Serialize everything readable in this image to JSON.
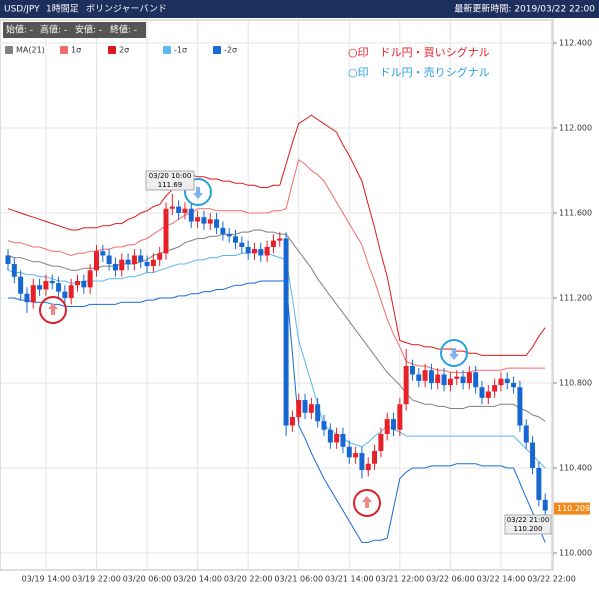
{
  "header": {
    "pair": "USD/JPY",
    "timeframe": "1時間足",
    "indicator": "ボリンジャーバンド",
    "updated": "最新更新時間: 2019/03/22 22:00"
  },
  "info_bar": [
    "始値: -",
    "高値: -",
    "安値: -",
    "終値: -"
  ],
  "annotations": [
    {
      "time": "03/20 10:00",
      "price": "111.69"
    },
    {
      "time": "03/22 21:00",
      "price": "110.200"
    }
  ],
  "chart_data": {
    "type": "candlestick",
    "categories": [
      null,
      null,
      null,
      null,
      null,
      null,
      "03/19 14:00",
      null,
      null,
      null,
      null,
      null,
      null,
      null,
      "03/19 22:00",
      null,
      null,
      null,
      null,
      null,
      null,
      null,
      "03/20 06:00",
      null,
      null,
      null,
      null,
      null,
      null,
      null,
      "03/20 14:00",
      null,
      null,
      null,
      null,
      null,
      null,
      null,
      "03/20 22:00",
      null,
      null,
      null,
      null,
      null,
      null,
      null,
      "03/21 06:00",
      null,
      null,
      null,
      null,
      null,
      null,
      null,
      "03/21 14:00",
      null,
      null,
      null,
      null,
      null,
      null,
      null,
      "03/21 22:00",
      null,
      null,
      null,
      null,
      null,
      null,
      null,
      "03/22 06:00",
      null,
      null,
      null,
      null,
      null,
      null,
      null,
      "03/22 14:00",
      null,
      null,
      null,
      null,
      null,
      null,
      null,
      "03/22 22:00"
    ],
    "open": [
      111.4,
      111.36,
      111.3,
      111.22,
      111.18,
      111.26,
      111.24,
      111.28,
      111.27,
      111.23,
      111.2,
      111.26,
      111.28,
      111.25,
      111.33,
      111.42,
      111.4,
      111.36,
      111.33,
      111.38,
      111.36,
      111.4,
      111.37,
      111.35,
      111.38,
      111.41,
      111.62,
      111.63,
      111.6,
      111.62,
      111.56,
      111.58,
      111.55,
      111.57,
      111.53,
      111.5,
      111.49,
      111.46,
      111.44,
      111.41,
      111.43,
      111.4,
      111.44,
      111.47,
      111.48,
      110.6,
      110.64,
      110.72,
      110.66,
      110.7,
      110.62,
      110.58,
      110.52,
      110.56,
      110.5,
      110.45,
      110.47,
      110.39,
      110.42,
      110.48,
      110.56,
      110.63,
      110.58,
      110.7,
      110.88,
      110.84,
      110.81,
      110.86,
      110.8,
      110.84,
      110.79,
      110.82,
      110.83,
      110.8,
      110.85,
      110.78,
      110.73,
      110.76,
      110.79,
      110.82,
      110.8,
      110.78,
      110.6,
      110.52,
      110.4,
      110.25,
      null
    ],
    "high": [
      111.43,
      111.39,
      111.33,
      111.25,
      111.29,
      111.29,
      111.31,
      111.31,
      111.3,
      111.26,
      111.29,
      111.31,
      111.31,
      111.36,
      111.45,
      111.45,
      111.43,
      111.39,
      111.41,
      111.41,
      111.43,
      111.43,
      111.4,
      111.41,
      111.44,
      111.65,
      111.69,
      111.66,
      111.65,
      111.65,
      111.61,
      111.61,
      111.6,
      111.6,
      111.56,
      111.53,
      111.52,
      111.49,
      111.47,
      111.46,
      111.46,
      111.47,
      111.5,
      111.51,
      111.51,
      110.67,
      110.75,
      110.75,
      110.73,
      110.73,
      110.65,
      110.61,
      110.59,
      110.59,
      110.53,
      110.5,
      110.5,
      110.45,
      110.51,
      110.59,
      110.66,
      110.66,
      110.73,
      110.96,
      110.91,
      110.87,
      110.89,
      110.89,
      110.87,
      110.87,
      110.85,
      110.86,
      110.86,
      110.88,
      110.88,
      110.81,
      110.79,
      110.82,
      110.85,
      110.85,
      110.83,
      110.81,
      110.63,
      110.55,
      110.43,
      110.28,
      null
    ],
    "low": [
      111.33,
      111.27,
      111.19,
      111.13,
      111.15,
      111.21,
      111.21,
      111.24,
      111.2,
      111.17,
      111.17,
      111.23,
      111.22,
      111.22,
      111.3,
      111.37,
      111.33,
      111.3,
      111.3,
      111.33,
      111.33,
      111.34,
      111.32,
      111.32,
      111.35,
      111.38,
      111.59,
      111.57,
      111.57,
      111.53,
      111.53,
      111.52,
      111.52,
      111.5,
      111.47,
      111.46,
      111.43,
      111.41,
      111.38,
      111.38,
      111.37,
      111.37,
      111.41,
      111.44,
      110.55,
      110.57,
      110.61,
      110.63,
      110.63,
      110.59,
      110.55,
      110.49,
      110.49,
      110.47,
      110.42,
      110.42,
      110.35,
      110.36,
      110.39,
      110.45,
      110.53,
      110.55,
      110.55,
      110.67,
      110.81,
      110.78,
      110.78,
      110.77,
      110.77,
      110.76,
      110.76,
      110.79,
      110.77,
      110.77,
      110.75,
      110.7,
      110.7,
      110.73,
      110.76,
      110.77,
      110.75,
      110.57,
      110.49,
      110.37,
      110.22,
      110.18,
      null
    ],
    "close": [
      111.36,
      111.3,
      111.22,
      111.18,
      111.26,
      111.24,
      111.28,
      111.27,
      111.23,
      111.2,
      111.26,
      111.28,
      111.25,
      111.33,
      111.42,
      111.4,
      111.36,
      111.33,
      111.38,
      111.36,
      111.4,
      111.37,
      111.35,
      111.38,
      111.41,
      111.62,
      111.63,
      111.6,
      111.62,
      111.56,
      111.58,
      111.55,
      111.57,
      111.53,
      111.5,
      111.49,
      111.46,
      111.44,
      111.41,
      111.43,
      111.4,
      111.44,
      111.47,
      111.48,
      110.6,
      110.64,
      110.72,
      110.66,
      110.7,
      110.62,
      110.58,
      110.52,
      110.56,
      110.5,
      110.45,
      110.47,
      110.39,
      110.42,
      110.48,
      110.56,
      110.63,
      110.58,
      110.7,
      110.88,
      110.84,
      110.81,
      110.86,
      110.8,
      110.84,
      110.79,
      110.82,
      110.83,
      110.8,
      110.85,
      110.78,
      110.73,
      110.76,
      110.79,
      110.82,
      110.8,
      110.78,
      110.6,
      110.52,
      110.4,
      110.25,
      110.2,
      null
    ],
    "up_color": "#e8202a",
    "down_color": "#1667d2",
    "bands": [
      {
        "name": "MA(21)",
        "color": "#808080",
        "values": [
          111.4,
          111.39,
          111.39,
          111.38,
          111.37,
          111.37,
          111.36,
          111.35,
          111.35,
          111.34,
          111.33,
          111.33,
          111.34,
          111.34,
          111.34,
          111.35,
          111.35,
          111.35,
          111.36,
          111.36,
          111.36,
          111.37,
          111.38,
          111.4,
          111.41,
          111.42,
          111.43,
          111.44,
          111.46,
          111.47,
          111.48,
          111.48,
          111.49,
          111.49,
          111.5,
          111.5,
          111.5,
          111.51,
          111.51,
          111.52,
          111.52,
          111.51,
          111.51,
          111.5,
          111.5,
          111.46,
          111.42,
          111.38,
          111.34,
          111.29,
          111.25,
          111.21,
          111.17,
          111.13,
          111.09,
          111.05,
          111.01,
          110.97,
          110.93,
          110.89,
          110.85,
          110.82,
          110.79,
          110.75,
          110.72,
          110.71,
          110.7,
          110.7,
          110.69,
          110.69,
          110.68,
          110.68,
          110.68,
          110.69,
          110.69,
          110.69,
          110.69,
          110.69,
          110.7,
          110.7,
          110.7,
          110.68,
          110.67,
          110.65,
          110.64,
          110.62,
          null
        ]
      },
      {
        "name": "1σ",
        "color": "#f36b6b",
        "values": [
          111.47,
          111.46,
          111.46,
          111.45,
          111.44,
          111.44,
          111.43,
          111.42,
          111.42,
          111.41,
          111.4,
          111.41,
          111.41,
          111.42,
          111.42,
          111.43,
          111.43,
          111.44,
          111.44,
          111.45,
          111.45,
          111.47,
          111.48,
          111.5,
          111.52,
          111.54,
          111.55,
          111.57,
          111.59,
          111.6,
          111.62,
          111.62,
          111.62,
          111.61,
          111.61,
          111.61,
          111.61,
          111.61,
          111.6,
          111.6,
          111.6,
          111.6,
          111.61,
          111.61,
          111.62,
          111.74,
          111.85,
          111.83,
          111.8,
          111.78,
          111.75,
          111.7,
          111.65,
          111.6,
          111.55,
          111.5,
          111.45,
          111.36,
          111.28,
          111.19,
          111.1,
          111.03,
          110.97,
          110.9,
          110.89,
          110.88,
          110.88,
          110.87,
          110.86,
          110.86,
          110.85,
          110.85,
          110.85,
          110.85,
          110.86,
          110.86,
          110.86,
          110.86,
          110.86,
          110.87,
          110.87,
          110.87,
          110.87,
          110.87,
          110.87,
          110.87,
          null
        ]
      },
      {
        "name": "2σ",
        "color": "#e01818",
        "values": [
          111.62,
          111.61,
          111.6,
          111.59,
          111.58,
          111.57,
          111.56,
          111.55,
          111.54,
          111.53,
          111.52,
          111.52,
          111.53,
          111.53,
          111.53,
          111.54,
          111.54,
          111.55,
          111.55,
          111.57,
          111.58,
          111.6,
          111.61,
          111.63,
          111.64,
          111.68,
          111.71,
          111.75,
          111.78,
          111.78,
          111.77,
          111.77,
          111.76,
          111.76,
          111.75,
          111.75,
          111.74,
          111.74,
          111.73,
          111.73,
          111.72,
          111.72,
          111.73,
          111.73,
          111.83,
          111.93,
          112.02,
          112.04,
          112.06,
          112.04,
          112.02,
          112.0,
          111.98,
          111.92,
          111.87,
          111.81,
          111.75,
          111.64,
          111.53,
          111.41,
          111.3,
          111.15,
          111.0,
          110.99,
          110.98,
          110.98,
          110.97,
          110.97,
          110.96,
          110.96,
          110.96,
          110.95,
          110.95,
          110.94,
          110.94,
          110.93,
          110.93,
          110.93,
          110.93,
          110.93,
          110.93,
          110.93,
          110.93,
          110.97,
          111.02,
          111.06,
          null
        ]
      },
      {
        "name": "-1σ",
        "color": "#5bb8f0",
        "values": [
          111.33,
          111.32,
          111.32,
          111.31,
          111.31,
          111.3,
          111.3,
          111.29,
          111.28,
          111.28,
          111.27,
          111.27,
          111.28,
          111.28,
          111.28,
          111.28,
          111.29,
          111.29,
          111.29,
          111.3,
          111.3,
          111.31,
          111.32,
          111.32,
          111.33,
          111.34,
          111.35,
          111.36,
          111.36,
          111.37,
          111.38,
          111.38,
          111.39,
          111.39,
          111.4,
          111.4,
          111.4,
          111.41,
          111.41,
          111.42,
          111.42,
          111.41,
          111.4,
          111.39,
          111.38,
          111.2,
          111.0,
          110.9,
          110.8,
          110.7,
          110.6,
          110.58,
          110.56,
          110.54,
          110.52,
          110.51,
          110.5,
          110.52,
          110.55,
          110.57,
          110.6,
          110.58,
          110.57,
          110.55,
          110.55,
          110.55,
          110.55,
          110.55,
          110.55,
          110.55,
          110.55,
          110.55,
          110.55,
          110.55,
          110.55,
          110.55,
          110.55,
          110.55,
          110.55,
          110.55,
          110.55,
          110.52,
          110.49,
          110.46,
          110.43,
          110.4,
          null
        ]
      },
      {
        "name": "-2σ",
        "color": "#1a6ad8",
        "values": [
          111.2,
          111.2,
          111.19,
          111.19,
          111.18,
          111.18,
          111.18,
          111.17,
          111.17,
          111.16,
          111.16,
          111.16,
          111.16,
          111.17,
          111.17,
          111.17,
          111.17,
          111.17,
          111.18,
          111.18,
          111.18,
          111.18,
          111.19,
          111.19,
          111.2,
          111.2,
          111.2,
          111.21,
          111.21,
          111.22,
          111.22,
          111.23,
          111.23,
          111.24,
          111.24,
          111.25,
          111.26,
          111.26,
          111.27,
          111.27,
          111.28,
          111.28,
          111.28,
          111.28,
          111.28,
          110.94,
          110.6,
          110.54,
          110.47,
          110.41,
          110.35,
          110.3,
          110.25,
          110.2,
          110.15,
          110.1,
          110.05,
          110.05,
          110.06,
          110.06,
          110.07,
          110.21,
          110.35,
          110.38,
          110.4,
          110.4,
          110.4,
          110.41,
          110.41,
          110.41,
          110.41,
          110.42,
          110.42,
          110.42,
          110.42,
          110.41,
          110.41,
          110.41,
          110.41,
          110.4,
          110.4,
          110.33,
          110.26,
          110.19,
          110.12,
          110.05,
          null
        ]
      }
    ],
    "ylim": [
      109.92,
      112.508
    ],
    "yticks": [
      {
        "value": 110,
        "label": "110.000"
      },
      {
        "value": 110.4,
        "label": "110.400"
      },
      {
        "value": 110.8,
        "label": "110.800"
      },
      {
        "value": 111.2,
        "label": "111.200"
      },
      {
        "value": 111.6,
        "label": "111.600"
      },
      {
        "value": 112,
        "label": "112.000"
      },
      {
        "value": 112.4,
        "label": "112.400"
      }
    ],
    "grid": true,
    "signal_notes": [
      {
        "text": "○印　ドル円・買いシグナル",
        "color": "#e8202a"
      },
      {
        "text": "○印　ドル円・売りシグナル",
        "color": "#2a9fe0"
      }
    ],
    "last_price": {
      "value": 110.209,
      "label": "110.209",
      "color": "#f08a1c"
    }
  }
}
